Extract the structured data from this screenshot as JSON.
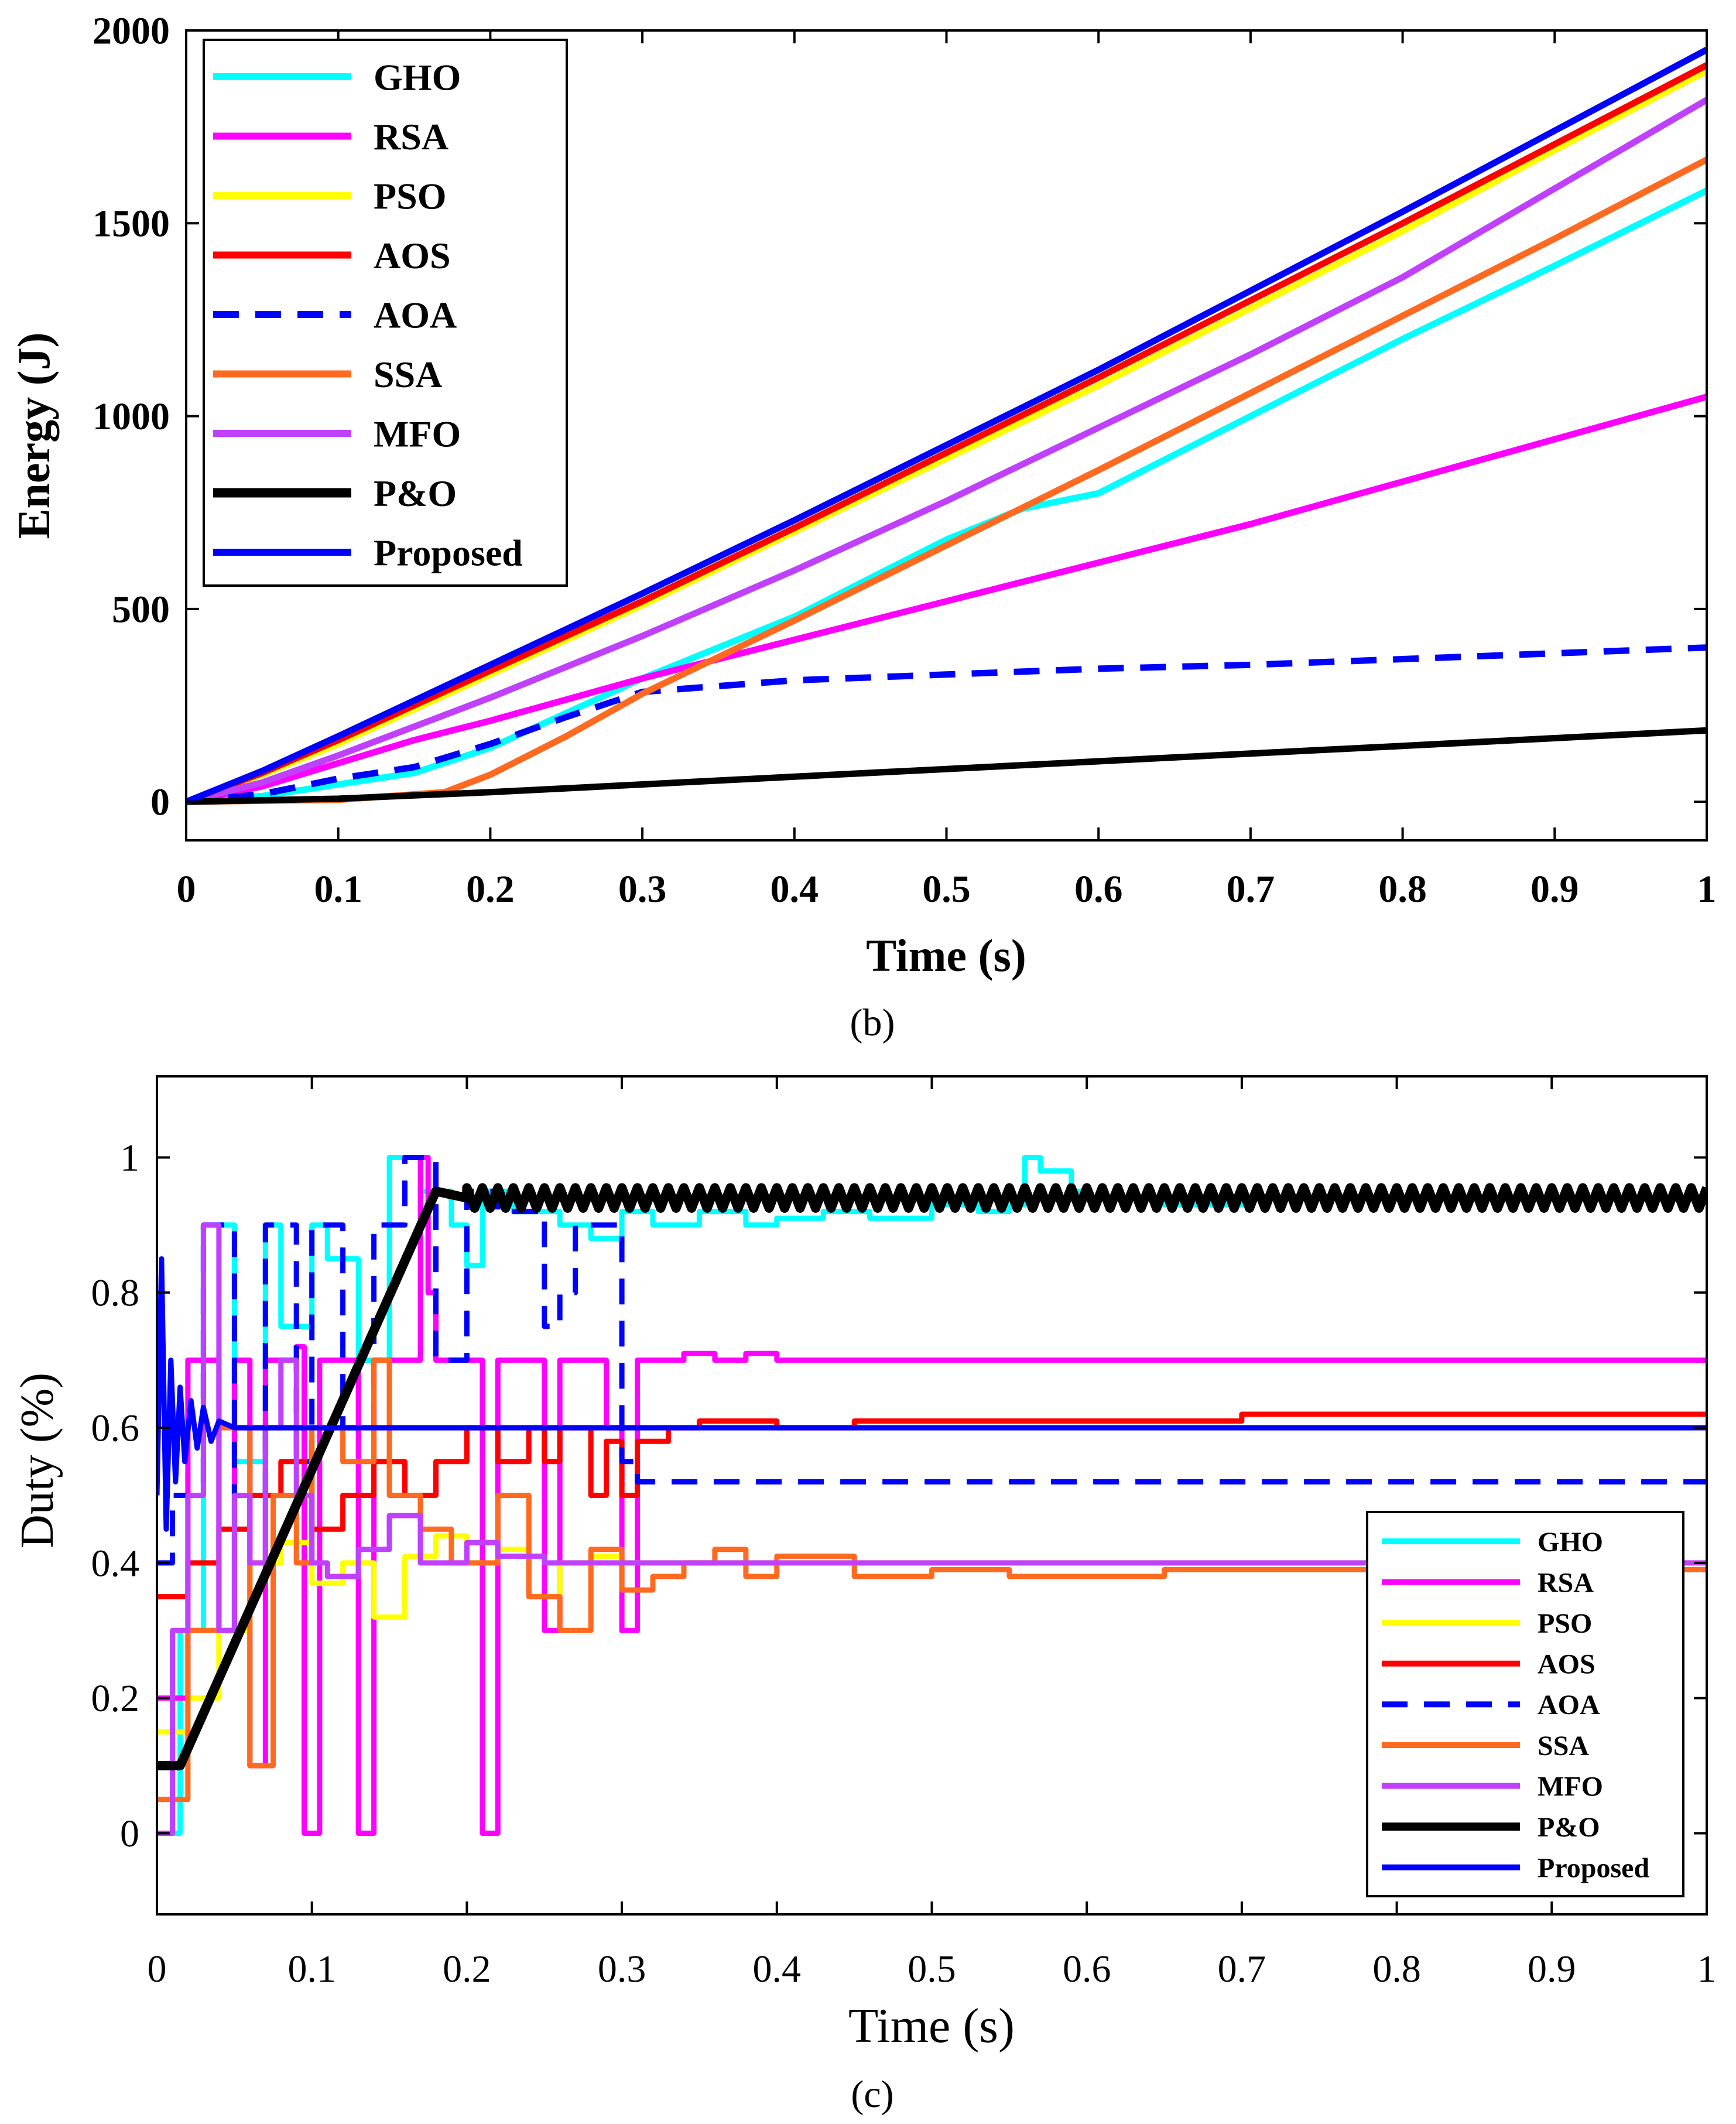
{
  "chart_data": [
    {
      "type": "line",
      "panel_caption": "(b)",
      "xlabel": "Time (s)",
      "ylabel": "Energy (J)",
      "xlim": [
        0,
        1
      ],
      "ylim": [
        -100,
        2000
      ],
      "xticks": [
        0,
        0.1,
        0.2,
        0.3,
        0.4,
        0.5,
        0.6,
        0.7,
        0.8,
        0.9,
        1
      ],
      "xtick_labels": [
        "0",
        "0.1",
        "0.2",
        "0.3",
        "0.4",
        "0.5",
        "0.6",
        "0.7",
        "0.8",
        "0.9",
        "1"
      ],
      "yticks": [
        0,
        500,
        1000,
        1500,
        2000
      ],
      "ytick_labels": [
        "0",
        "500",
        "1000",
        "1500",
        "2000"
      ],
      "grid": false,
      "legend_position": "top-left",
      "series": [
        {
          "name": "GHO",
          "color": "#00FFFF",
          "dash": "solid",
          "x": [
            0,
            0.05,
            0.1,
            0.15,
            0.2,
            0.3,
            0.4,
            0.5,
            0.55,
            0.6,
            0.7,
            0.8,
            0.9,
            1.0
          ],
          "y": [
            0,
            15,
            45,
            75,
            140,
            320,
            480,
            680,
            760,
            800,
            1000,
            1200,
            1390,
            1585
          ]
        },
        {
          "name": "RSA",
          "color": "#FF00FF",
          "dash": "solid",
          "x": [
            0,
            0.05,
            0.1,
            0.15,
            0.2,
            0.3,
            0.4,
            0.5,
            0.6,
            0.7,
            0.8,
            0.9,
            1.0
          ],
          "y": [
            0,
            40,
            100,
            160,
            210,
            320,
            420,
            520,
            620,
            720,
            830,
            940,
            1050
          ]
        },
        {
          "name": "PSO",
          "color": "#FFFF00",
          "dash": "solid",
          "x": [
            0,
            0.05,
            0.1,
            0.2,
            0.3,
            0.4,
            0.5,
            0.6,
            0.7,
            0.8,
            0.9,
            1.0
          ],
          "y": [
            0,
            70,
            150,
            330,
            510,
            700,
            890,
            1080,
            1280,
            1480,
            1690,
            1895
          ]
        },
        {
          "name": "AOS",
          "color": "#FF0000",
          "dash": "solid",
          "x": [
            0,
            0.05,
            0.1,
            0.2,
            0.3,
            0.4,
            0.5,
            0.6,
            0.7,
            0.8,
            0.9,
            1.0
          ],
          "y": [
            0,
            75,
            160,
            340,
            520,
            710,
            905,
            1100,
            1300,
            1500,
            1705,
            1910
          ]
        },
        {
          "name": "AOA",
          "color": "#0000FF",
          "dash": "dashed",
          "x": [
            0,
            0.05,
            0.1,
            0.15,
            0.2,
            0.25,
            0.3,
            0.4,
            0.5,
            0.6,
            0.7,
            0.8,
            0.9,
            1.0
          ],
          "y": [
            0,
            20,
            60,
            90,
            150,
            220,
            285,
            315,
            330,
            345,
            355,
            370,
            385,
            400
          ]
        },
        {
          "name": "SSA",
          "color": "#FF6A20",
          "dash": "solid",
          "x": [
            0,
            0.1,
            0.17,
            0.2,
            0.25,
            0.3,
            0.4,
            0.5,
            0.6,
            0.7,
            0.8,
            0.9,
            1.0
          ],
          "y": [
            0,
            5,
            25,
            70,
            170,
            280,
            470,
            665,
            860,
            1060,
            1260,
            1460,
            1665
          ]
        },
        {
          "name": "MFO",
          "color": "#C040FF",
          "dash": "solid",
          "x": [
            0,
            0.05,
            0.1,
            0.2,
            0.3,
            0.4,
            0.5,
            0.6,
            0.7,
            0.8,
            0.9,
            1.0
          ],
          "y": [
            0,
            50,
            120,
            270,
            430,
            600,
            780,
            970,
            1160,
            1360,
            1590,
            1820
          ]
        },
        {
          "name": "P&O",
          "color": "#000000",
          "dash": "solid",
          "x": [
            0,
            0.1,
            0.2,
            0.3,
            0.4,
            0.5,
            0.6,
            0.7,
            0.8,
            0.9,
            1.0
          ],
          "y": [
            0,
            8,
            25,
            45,
            65,
            85,
            105,
            125,
            145,
            165,
            185
          ]
        },
        {
          "name": "Proposed",
          "color": "#0000FF",
          "dash": "solid",
          "x": [
            0,
            0.05,
            0.1,
            0.2,
            0.3,
            0.4,
            0.5,
            0.6,
            0.7,
            0.8,
            0.9,
            1.0
          ],
          "y": [
            0,
            80,
            170,
            355,
            540,
            730,
            925,
            1120,
            1325,
            1530,
            1740,
            1950
          ]
        }
      ]
    },
    {
      "type": "line",
      "panel_caption": "(c)",
      "xlabel": "Time (s)",
      "ylabel": "Duty (%)",
      "xlim": [
        0,
        1
      ],
      "ylim": [
        -0.12,
        1.12
      ],
      "xticks": [
        0,
        0.1,
        0.2,
        0.3,
        0.4,
        0.5,
        0.6,
        0.7,
        0.8,
        0.9,
        1
      ],
      "xtick_labels": [
        "0",
        "0.1",
        "0.2",
        "0.3",
        "0.4",
        "0.5",
        "0.6",
        "0.7",
        "0.8",
        "0.9",
        "1"
      ],
      "yticks": [
        0,
        0.2,
        0.4,
        0.6,
        0.8,
        1
      ],
      "ytick_labels": [
        "0",
        "0.2",
        "0.4",
        "0.6",
        "0.8",
        "1"
      ],
      "grid": false,
      "legend_position": "bottom-right",
      "series": [
        {
          "name": "GHO",
          "color": "#00FFFF",
          "dash": "solid",
          "step": true,
          "x": [
            0,
            0.015,
            0.03,
            0.05,
            0.07,
            0.08,
            0.1,
            0.11,
            0.13,
            0.15,
            0.17,
            0.19,
            0.2,
            0.21,
            0.23,
            0.26,
            0.28,
            0.3,
            0.32,
            0.35,
            0.38,
            0.4,
            0.43,
            0.46,
            0.5,
            0.53,
            0.55,
            0.56,
            0.57,
            0.59,
            0.6,
            0.65,
            0.7,
            0.8,
            0.9,
            1.0
          ],
          "y": [
            0,
            0.3,
            0.9,
            0.55,
            0.9,
            0.75,
            0.9,
            0.85,
            0.7,
            1.0,
            0.95,
            0.9,
            0.84,
            0.95,
            0.92,
            0.9,
            0.88,
            0.92,
            0.9,
            0.92,
            0.9,
            0.91,
            0.92,
            0.91,
            0.93,
            0.92,
            0.93,
            1.0,
            0.98,
            0.95,
            0.94,
            0.93,
            0.94,
            0.94,
            0.94,
            0.94
          ]
        },
        {
          "name": "RSA",
          "color": "#FF00FF",
          "dash": "solid",
          "step": true,
          "x": [
            0,
            0.02,
            0.04,
            0.05,
            0.06,
            0.07,
            0.09,
            0.095,
            0.105,
            0.13,
            0.14,
            0.15,
            0.17,
            0.175,
            0.18,
            0.21,
            0.22,
            0.225,
            0.23,
            0.25,
            0.26,
            0.27,
            0.28,
            0.29,
            0.3,
            0.31,
            0.34,
            0.36,
            0.38,
            0.4,
            1.0
          ],
          "y": [
            0.2,
            0.7,
            0.3,
            0.7,
            0.1,
            0.7,
            0.72,
            0,
            0.7,
            0,
            0.7,
            0.7,
            1.0,
            0.8,
            0.7,
            0,
            0.7,
            0.7,
            0.7,
            0.3,
            0.7,
            0.7,
            0.7,
            0.6,
            0.3,
            0.7,
            0.71,
            0.7,
            0.71,
            0.7,
            0.7
          ]
        },
        {
          "name": "PSO",
          "color": "#FFFF00",
          "dash": "solid",
          "step": true,
          "x": [
            0,
            0.02,
            0.04,
            0.06,
            0.08,
            0.1,
            0.12,
            0.14,
            0.16,
            0.18,
            0.2,
            0.22,
            0.24,
            0.26,
            0.28,
            0.3,
            0.35,
            1.0
          ],
          "y": [
            0.15,
            0.2,
            0.3,
            0.4,
            0.43,
            0.37,
            0.4,
            0.32,
            0.41,
            0.44,
            0.4,
            0.42,
            0.35,
            0.4,
            0.41,
            0.4,
            0.4,
            0.4
          ]
        },
        {
          "name": "AOS",
          "color": "#FF0000",
          "dash": "solid",
          "step": true,
          "x": [
            0,
            0.02,
            0.04,
            0.06,
            0.08,
            0.1,
            0.12,
            0.14,
            0.16,
            0.18,
            0.2,
            0.22,
            0.24,
            0.25,
            0.26,
            0.28,
            0.29,
            0.3,
            0.31,
            0.33,
            0.35,
            0.4,
            0.45,
            0.5,
            0.6,
            0.7,
            0.8,
            0.9,
            1.0
          ],
          "y": [
            0.35,
            0.4,
            0.45,
            0.5,
            0.55,
            0.45,
            0.5,
            0.55,
            0.5,
            0.55,
            0.6,
            0.55,
            0.6,
            0.55,
            0.6,
            0.5,
            0.58,
            0.5,
            0.58,
            0.6,
            0.61,
            0.6,
            0.61,
            0.61,
            0.61,
            0.62,
            0.62,
            0.62,
            0.62
          ]
        },
        {
          "name": "AOA",
          "color": "#0000FF",
          "dash": "dashed",
          "step": true,
          "x": [
            0,
            0.01,
            0.03,
            0.05,
            0.07,
            0.09,
            0.1,
            0.12,
            0.14,
            0.16,
            0.18,
            0.2,
            0.22,
            0.25,
            0.26,
            0.27,
            0.28,
            0.3,
            0.31,
            1.0
          ],
          "y": [
            0.4,
            0.5,
            0.9,
            0.5,
            0.9,
            0.55,
            0.9,
            0.6,
            0.9,
            1.0,
            0.7,
            0.95,
            0.92,
            0.75,
            0.8,
            0.9,
            0.9,
            0.55,
            0.52,
            0.52
          ]
        },
        {
          "name": "SSA",
          "color": "#FF6A20",
          "dash": "solid",
          "step": true,
          "x": [
            0,
            0.02,
            0.04,
            0.06,
            0.075,
            0.09,
            0.1,
            0.12,
            0.14,
            0.15,
            0.17,
            0.19,
            0.2,
            0.22,
            0.24,
            0.26,
            0.28,
            0.3,
            0.32,
            0.34,
            0.36,
            0.38,
            0.4,
            0.45,
            0.5,
            0.55,
            0.6,
            0.65,
            0.7,
            0.8,
            0.9,
            1.0
          ],
          "y": [
            0.05,
            0.3,
            0.6,
            0.1,
            0.5,
            0.4,
            0.6,
            0.55,
            0.7,
            0.5,
            0.45,
            0.4,
            0.4,
            0.5,
            0.35,
            0.3,
            0.42,
            0.36,
            0.38,
            0.4,
            0.42,
            0.38,
            0.41,
            0.38,
            0.39,
            0.38,
            0.38,
            0.39,
            0.39,
            0.39,
            0.39,
            0.39
          ]
        },
        {
          "name": "MFO",
          "color": "#C040FF",
          "dash": "solid",
          "step": true,
          "x": [
            0,
            0.01,
            0.02,
            0.03,
            0.04,
            0.05,
            0.06,
            0.07,
            0.08,
            0.09,
            0.1,
            0.11,
            0.13,
            0.15,
            0.17,
            0.2,
            0.22,
            0.25,
            0.3,
            0.4,
            0.5,
            0.6,
            0.7,
            0.8,
            0.9,
            1.0
          ],
          "y": [
            0,
            0.3,
            0.5,
            0.9,
            0.3,
            0.5,
            0.4,
            0.6,
            0.7,
            0.5,
            0.4,
            0.38,
            0.42,
            0.47,
            0.4,
            0.43,
            0.41,
            0.4,
            0.4,
            0.4,
            0.4,
            0.4,
            0.4,
            0.4,
            0.4,
            0.4
          ]
        },
        {
          "name": "P&O",
          "color": "#000000",
          "dash": "solid",
          "step": false,
          "x": [
            0,
            0.015,
            0.18,
            0.2,
            1.0
          ],
          "y": [
            0.1,
            0.1,
            0.95,
            0.94,
            0.94
          ],
          "ripple_from": 0.2,
          "ripple_amplitude": 0.015
        },
        {
          "name": "Proposed",
          "color": "#0000FF",
          "dash": "solid",
          "step": false,
          "x": [
            0,
            0.003,
            0.006,
            0.009,
            0.012,
            0.015,
            0.018,
            0.022,
            0.026,
            0.03,
            0.035,
            0.04,
            0.05,
            0.06,
            1.0
          ],
          "y": [
            0.5,
            0.85,
            0.45,
            0.7,
            0.52,
            0.66,
            0.55,
            0.64,
            0.57,
            0.63,
            0.58,
            0.61,
            0.6,
            0.6,
            0.6
          ]
        }
      ]
    }
  ],
  "legend_labels": [
    "GHO",
    "RSA",
    "PSO",
    "AOS",
    "AOA",
    "SSA",
    "MFO",
    "P&O",
    "Proposed"
  ]
}
